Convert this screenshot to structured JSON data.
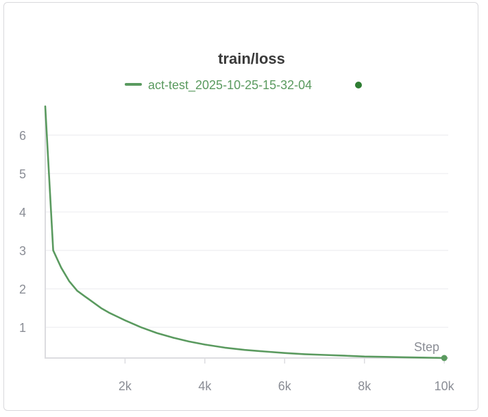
{
  "chart_data": {
    "type": "line",
    "title": "train/loss",
    "xlabel": "Step",
    "ylabel": "",
    "xlim": [
      0,
      10100
    ],
    "ylim": [
      0.2,
      6.75
    ],
    "x_ticks": [
      {
        "value": 2000,
        "label": "2k"
      },
      {
        "value": 4000,
        "label": "4k"
      },
      {
        "value": 6000,
        "label": "6k"
      },
      {
        "value": 8000,
        "label": "8k"
      },
      {
        "value": 10000,
        "label": "10k"
      }
    ],
    "y_ticks": [
      {
        "value": 1,
        "label": "1"
      },
      {
        "value": 2,
        "label": "2"
      },
      {
        "value": 3,
        "label": "3"
      },
      {
        "value": 4,
        "label": "4"
      },
      {
        "value": 5,
        "label": "5"
      },
      {
        "value": 6,
        "label": "6"
      }
    ],
    "grid": true,
    "legend_position": "top-center",
    "series": [
      {
        "name": "act-test_2025-10-25-15-32-04",
        "color": "#5a9a5f",
        "x": [
          0,
          200,
          400,
          600,
          800,
          1000,
          1200,
          1400,
          1600,
          1800,
          2000,
          2400,
          2800,
          3200,
          3600,
          4000,
          4500,
          5000,
          5500,
          6000,
          6500,
          7000,
          7500,
          8000,
          8500,
          9000,
          9500,
          10000
        ],
        "y": [
          6.75,
          3.0,
          2.55,
          2.2,
          1.95,
          1.8,
          1.65,
          1.5,
          1.38,
          1.28,
          1.18,
          1.0,
          0.85,
          0.73,
          0.63,
          0.55,
          0.47,
          0.41,
          0.37,
          0.33,
          0.3,
          0.28,
          0.26,
          0.24,
          0.23,
          0.22,
          0.21,
          0.2
        ]
      }
    ]
  }
}
